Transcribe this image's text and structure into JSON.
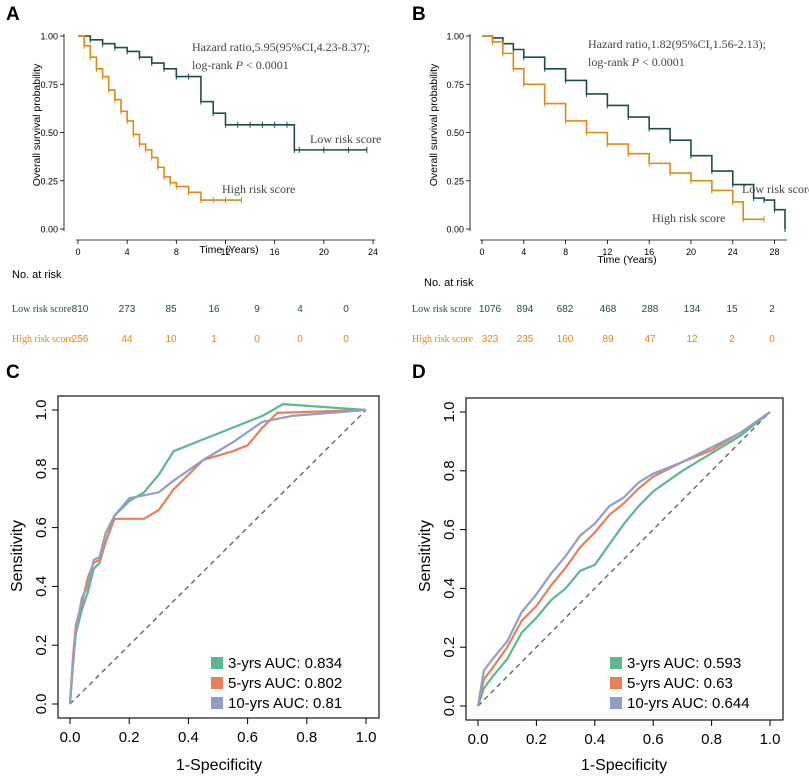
{
  "colors": {
    "low": "#1f4e4a",
    "high": "#e08a12",
    "green": "#5bb88f",
    "orange": "#ea7f58",
    "purple": "#8f9fca",
    "axis": "#000000",
    "diag": "#666666"
  },
  "chart_data": [
    {
      "panel": "A",
      "type": "line",
      "title": "",
      "xlabel": "Time (Years)",
      "ylabel": "Overall survival probability",
      "xlim": [
        0,
        24
      ],
      "ylim": [
        0,
        1
      ],
      "xticks": [
        "0",
        "4",
        "8",
        "12",
        "16",
        "20",
        "24"
      ],
      "yticks": [
        "0.00",
        "0.25",
        "0.50",
        "0.75",
        "1.00"
      ],
      "annotation": {
        "line1": "Hazard ratio,5.95(95%CI,4.23-8.37);",
        "line2_prefix": "log-rank",
        "line2_p": "P",
        "line2_suffix": "< 0.0001"
      },
      "series": [
        {
          "name": "Low risk score",
          "label": "Low risk score",
          "x": [
            0,
            1,
            2,
            3,
            4,
            5,
            6,
            7,
            8,
            9,
            10,
            11,
            12,
            13,
            14,
            15,
            16,
            17,
            17.6,
            18,
            20,
            22,
            23.5
          ],
          "y": [
            1.0,
            0.98,
            0.96,
            0.94,
            0.92,
            0.89,
            0.86,
            0.83,
            0.79,
            0.79,
            0.66,
            0.6,
            0.54,
            0.54,
            0.54,
            0.54,
            0.54,
            0.54,
            0.41,
            0.41,
            0.41,
            0.41,
            0.41
          ]
        },
        {
          "name": "High risk score",
          "label": "High risk score",
          "x": [
            0,
            0.5,
            1,
            1.5,
            2,
            2.5,
            3,
            3.5,
            4,
            4.5,
            5,
            5.5,
            6,
            6.5,
            7,
            7.5,
            8,
            9,
            10,
            11,
            12,
            13.3
          ],
          "y": [
            1.0,
            0.95,
            0.89,
            0.83,
            0.79,
            0.72,
            0.67,
            0.61,
            0.56,
            0.49,
            0.44,
            0.41,
            0.37,
            0.32,
            0.27,
            0.24,
            0.22,
            0.19,
            0.15,
            0.15,
            0.15,
            0.15
          ]
        }
      ],
      "risk_table": {
        "heading": "No. at risk",
        "rows": [
          {
            "label": "Low risk score",
            "values": [
              "810",
              "273",
              "85",
              "16",
              "9",
              "4",
              "0"
            ]
          },
          {
            "label": "High risk score",
            "values": [
              "256",
              "44",
              "10",
              "1",
              "0",
              "0",
              "0"
            ]
          }
        ]
      }
    },
    {
      "panel": "B",
      "type": "line",
      "title": "",
      "xlabel": "Time (Years)",
      "ylabel": "Overall survival probability",
      "xlim": [
        0,
        29
      ],
      "ylim": [
        0,
        1
      ],
      "xticks": [
        "0",
        "4",
        "8",
        "12",
        "16",
        "20",
        "24",
        "28"
      ],
      "yticks": [
        "0.00",
        "0.25",
        "0.50",
        "0.75",
        "1.00"
      ],
      "annotation": {
        "line1": "Hazard ratio,1.82(95%CI,1.56-2.13);",
        "line2_prefix": "log-rank",
        "line2_p": "P",
        "line2_suffix": "< 0.0001"
      },
      "series": [
        {
          "name": "Low risk score",
          "label": "Low risk score",
          "x": [
            0,
            1,
            2,
            3,
            4,
            6,
            8,
            10,
            12,
            14,
            16,
            18,
            20,
            22,
            24,
            26,
            27,
            28,
            29
          ],
          "y": [
            1.0,
            0.99,
            0.96,
            0.93,
            0.89,
            0.83,
            0.77,
            0.7,
            0.64,
            0.58,
            0.52,
            0.46,
            0.38,
            0.3,
            0.23,
            0.16,
            0.15,
            0.1,
            0.0
          ]
        },
        {
          "name": "High risk score",
          "label": "High risk score",
          "x": [
            0,
            1,
            2,
            3,
            4,
            6,
            8,
            10,
            12,
            14,
            16,
            18,
            20,
            22,
            24,
            25,
            27
          ],
          "y": [
            1.0,
            0.97,
            0.91,
            0.83,
            0.75,
            0.65,
            0.56,
            0.5,
            0.44,
            0.39,
            0.34,
            0.29,
            0.25,
            0.2,
            0.14,
            0.05,
            0.05
          ]
        }
      ],
      "risk_table": {
        "heading": "No. at risk",
        "rows": [
          {
            "label": "Low risk score",
            "values": [
              "1076",
              "894",
              "682",
              "468",
              "288",
              "134",
              "15",
              "2"
            ]
          },
          {
            "label": "High risk score",
            "values": [
              "323",
              "235",
              "160",
              "89",
              "47",
              "12",
              "2",
              "0"
            ]
          }
        ]
      }
    },
    {
      "panel": "C",
      "type": "line",
      "title": "",
      "xlabel": "1-Specificity",
      "ylabel": "Sensitivity",
      "xlim": [
        0,
        1
      ],
      "ylim": [
        0,
        1
      ],
      "xticks": [
        "0.0",
        "0.2",
        "0.4",
        "0.6",
        "0.8",
        "1.0"
      ],
      "yticks": [
        "0.0",
        "0.2",
        "0.4",
        "0.6",
        "0.8",
        "1.0"
      ],
      "series": [
        {
          "name": "3-yrs",
          "label": "3-yrs AUC: 0.834",
          "x": [
            0,
            0.01,
            0.02,
            0.04,
            0.06,
            0.08,
            0.1,
            0.12,
            0.15,
            0.2,
            0.25,
            0.3,
            0.35,
            0.45,
            0.55,
            0.65,
            0.72,
            1.0
          ],
          "y": [
            0,
            0.14,
            0.24,
            0.32,
            0.38,
            0.46,
            0.48,
            0.55,
            0.64,
            0.69,
            0.72,
            0.78,
            0.86,
            0.9,
            0.94,
            0.98,
            1.02,
            1.0
          ]
        },
        {
          "name": "5-yrs",
          "label": "5-yrs AUC: 0.802",
          "x": [
            0,
            0.01,
            0.02,
            0.04,
            0.06,
            0.08,
            0.1,
            0.12,
            0.15,
            0.2,
            0.25,
            0.3,
            0.35,
            0.45,
            0.55,
            0.6,
            0.65,
            0.7,
            1.0
          ],
          "y": [
            0,
            0.16,
            0.27,
            0.34,
            0.43,
            0.48,
            0.49,
            0.55,
            0.63,
            0.63,
            0.63,
            0.66,
            0.73,
            0.83,
            0.86,
            0.88,
            0.94,
            0.99,
            1.0
          ]
        },
        {
          "name": "10-yrs",
          "label": "10-yrs AUC: 0.81",
          "x": [
            0,
            0.01,
            0.02,
            0.04,
            0.06,
            0.08,
            0.1,
            0.12,
            0.15,
            0.2,
            0.25,
            0.3,
            0.35,
            0.45,
            0.55,
            0.65,
            0.75,
            1.0
          ],
          "y": [
            0,
            0.13,
            0.25,
            0.36,
            0.4,
            0.49,
            0.5,
            0.58,
            0.64,
            0.7,
            0.71,
            0.72,
            0.76,
            0.83,
            0.89,
            0.96,
            0.98,
            1.0
          ]
        }
      ]
    },
    {
      "panel": "D",
      "type": "line",
      "title": "",
      "xlabel": "1-Specificity",
      "ylabel": "Sensitivity",
      "xlim": [
        0,
        1
      ],
      "ylim": [
        0,
        1
      ],
      "xticks": [
        "0.0",
        "0.2",
        "0.4",
        "0.6",
        "0.8",
        "1.0"
      ],
      "yticks": [
        "0.0",
        "0.2",
        "0.4",
        "0.6",
        "0.8",
        "1.0"
      ],
      "series": [
        {
          "name": "3-yrs",
          "label": "3-yrs AUC: 0.593",
          "x": [
            0,
            0.02,
            0.05,
            0.1,
            0.15,
            0.2,
            0.25,
            0.3,
            0.35,
            0.4,
            0.45,
            0.5,
            0.55,
            0.6,
            0.7,
            0.8,
            0.9,
            1.0
          ],
          "y": [
            0,
            0.06,
            0.1,
            0.16,
            0.25,
            0.3,
            0.36,
            0.4,
            0.46,
            0.48,
            0.55,
            0.62,
            0.68,
            0.73,
            0.8,
            0.86,
            0.92,
            1.0
          ]
        },
        {
          "name": "5-yrs",
          "label": "5-yrs AUC: 0.63",
          "x": [
            0,
            0.02,
            0.05,
            0.1,
            0.15,
            0.2,
            0.25,
            0.3,
            0.35,
            0.4,
            0.45,
            0.5,
            0.55,
            0.6,
            0.7,
            0.8,
            0.9,
            1.0
          ],
          "y": [
            0,
            0.09,
            0.13,
            0.2,
            0.29,
            0.34,
            0.41,
            0.47,
            0.54,
            0.59,
            0.65,
            0.69,
            0.74,
            0.78,
            0.83,
            0.87,
            0.93,
            1.0
          ]
        },
        {
          "name": "10-yrs",
          "label": "10-yrs AUC: 0.644",
          "x": [
            0,
            0.02,
            0.05,
            0.1,
            0.15,
            0.2,
            0.25,
            0.3,
            0.35,
            0.4,
            0.45,
            0.5,
            0.55,
            0.6,
            0.7,
            0.8,
            0.9,
            1.0
          ],
          "y": [
            0,
            0.12,
            0.16,
            0.22,
            0.32,
            0.38,
            0.45,
            0.51,
            0.58,
            0.62,
            0.68,
            0.71,
            0.76,
            0.79,
            0.83,
            0.88,
            0.93,
            1.0
          ]
        }
      ]
    }
  ]
}
